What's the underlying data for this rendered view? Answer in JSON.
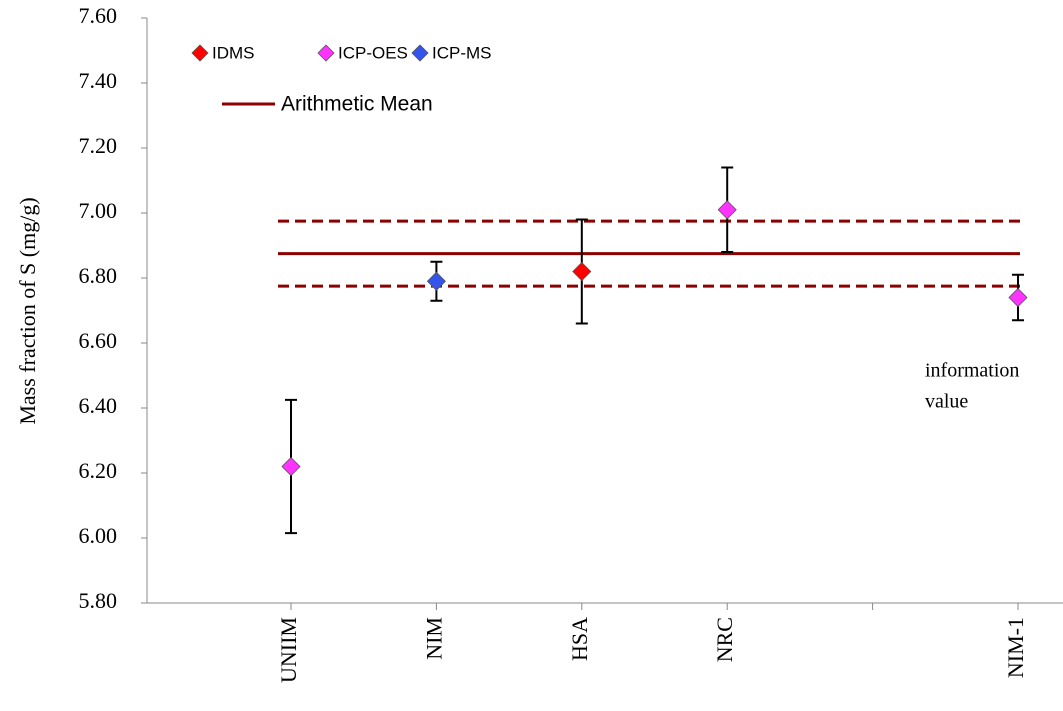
{
  "chart_data": {
    "type": "scatter",
    "y_label": "Mass fraction of S (mg/g)",
    "categories": [
      "UNIIM",
      "NIM",
      "HSA",
      "NRC",
      null,
      "NIM-1"
    ],
    "series": [
      {
        "name": "IDMS",
        "color": "#ff0000",
        "values": [
          null,
          null,
          6.82,
          null,
          null,
          null
        ],
        "errors": [
          null,
          null,
          0.16,
          null,
          null,
          null
        ]
      },
      {
        "name": "ICP-OES",
        "color": "#ff33ff",
        "values": [
          6.22,
          null,
          null,
          7.01,
          null,
          6.74
        ],
        "errors": [
          0.205,
          null,
          null,
          0.13,
          null,
          0.07
        ]
      },
      {
        "name": "ICP-MS",
        "color": "#3355ee",
        "values": [
          null,
          6.79,
          null,
          null,
          null,
          null
        ],
        "errors": [
          null,
          0.06,
          null,
          null,
          null,
          null
        ]
      }
    ],
    "reference_lines": [
      {
        "name": "Arithmetic Mean",
        "value": 6.875,
        "style": "solid",
        "color": "#8b0000"
      },
      {
        "value": 6.975,
        "style": "dashed",
        "color": "#8b0000"
      },
      {
        "value": 6.775,
        "style": "dashed",
        "color": "#8b0000"
      }
    ],
    "annotation": [
      "information",
      "value"
    ],
    "ylim": [
      5.8,
      7.6
    ],
    "yticks": [
      {
        "value": 5.8,
        "label": "5.80"
      },
      {
        "value": 6.0,
        "label": "6.00"
      },
      {
        "value": 6.2,
        "label": "6.20"
      },
      {
        "value": 6.4,
        "label": "6.40"
      },
      {
        "value": 6.6,
        "label": "6.60"
      },
      {
        "value": 6.8,
        "label": "6.80"
      },
      {
        "value": 7.0,
        "label": "7.00"
      },
      {
        "value": 7.2,
        "label": "7.20"
      },
      {
        "value": 7.4,
        "label": "7.40"
      },
      {
        "value": 7.6,
        "label": "7.60"
      }
    ]
  }
}
